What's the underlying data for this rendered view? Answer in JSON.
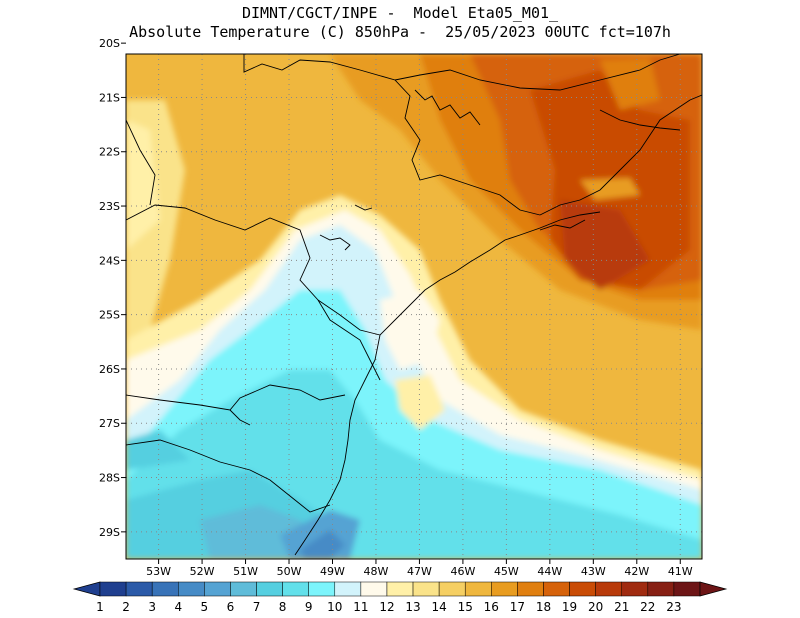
{
  "header": {
    "line1": "DIMNT/CGCT/INPE -  Model Eta05_M01_",
    "line2": "Absolute Temperature (C) 850hPa -  25/05/2023 00UTC fct=107h"
  },
  "map": {
    "lon_range": [
      -53.75,
      -40.5
    ],
    "lat_range": [
      -29.5,
      -20.2
    ],
    "lat_ticks": [
      "20S",
      "21S",
      "22S",
      "23S",
      "24S",
      "25S",
      "26S",
      "27S",
      "28S",
      "29S"
    ],
    "lon_ticks": [
      "53W",
      "52W",
      "51W",
      "50W",
      "49W",
      "48W",
      "47W",
      "46W",
      "45W",
      "44W",
      "43W",
      "42W",
      "41W"
    ],
    "grid_lines": "dotted"
  },
  "colorbar": {
    "labels": [
      "1",
      "2",
      "3",
      "4",
      "5",
      "6",
      "7",
      "8",
      "9",
      "10",
      "11",
      "12",
      "13",
      "14",
      "15",
      "16",
      "17",
      "18",
      "19",
      "20",
      "21",
      "22",
      "23"
    ],
    "colors": [
      "#1f3f8f",
      "#2b5aa8",
      "#3873b8",
      "#468bc6",
      "#55a3d3",
      "#5fbcd9",
      "#55cfe0",
      "#62e0ea",
      "#7cf4fb",
      "#d2f3fb",
      "#fffaeb",
      "#fff0a8",
      "#fae38a",
      "#f5cf63",
      "#efb73e",
      "#e89c20",
      "#e07f10",
      "#d6620a",
      "#c94c06",
      "#b83a0a",
      "#a02b10",
      "#872014",
      "#6d1516"
    ]
  }
}
